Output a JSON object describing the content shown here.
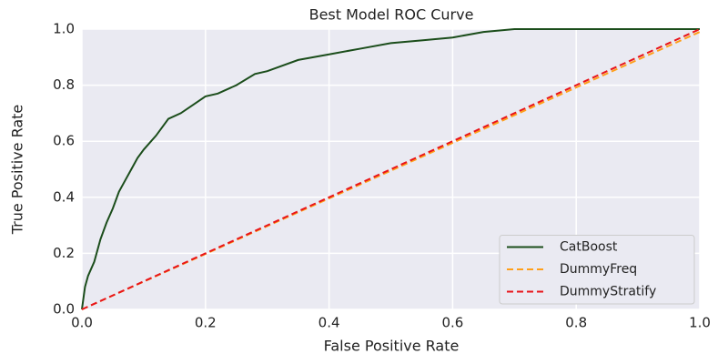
{
  "chart_data": {
    "type": "line",
    "title": "Best Model ROC Curve",
    "x_label": "False Positive Rate",
    "y_label": "True Positive Rate",
    "xlim": [
      0,
      1
    ],
    "ylim": [
      0,
      1
    ],
    "xticks": [
      {
        "value": 0,
        "label": "0.0"
      },
      0.2,
      0.4,
      0.6,
      0.8,
      {
        "value": 1,
        "label": "1.0"
      }
    ],
    "yticks": [
      {
        "value": 0,
        "label": "0.0"
      },
      0.2,
      0.4,
      0.6,
      0.8,
      {
        "value": 1,
        "label": "1.0"
      }
    ],
    "grid": true,
    "legend": "lower right",
    "series": [
      {
        "name": "CatBoost",
        "color": "#1b4d1b",
        "linestyle": "solid",
        "x": [
          0,
          0.005,
          0.01,
          0.02,
          0.03,
          0.04,
          0.05,
          0.06,
          0.07,
          0.08,
          0.09,
          0.1,
          0.12,
          0.14,
          0.16,
          0.18,
          0.2,
          0.22,
          0.25,
          0.28,
          0.3,
          0.35,
          0.4,
          0.45,
          0.5,
          0.55,
          0.6,
          0.65,
          0.7,
          1.0
        ],
        "values": [
          0,
          0.08,
          0.12,
          0.17,
          0.25,
          0.31,
          0.36,
          0.42,
          0.46,
          0.5,
          0.54,
          0.57,
          0.62,
          0.68,
          0.7,
          0.73,
          0.76,
          0.77,
          0.8,
          0.84,
          0.85,
          0.89,
          0.91,
          0.93,
          0.95,
          0.96,
          0.97,
          0.99,
          1.0,
          1.0
        ]
      },
      {
        "name": "DummyFreq",
        "color": "#ff9f1a",
        "linestyle": "dashed",
        "x": [
          0,
          1
        ],
        "values": [
          0,
          0.99
        ]
      },
      {
        "name": "DummyStratify",
        "color": "#e8141a",
        "linestyle": "dashed",
        "x": [
          0,
          1
        ],
        "values": [
          0,
          1
        ]
      }
    ]
  }
}
